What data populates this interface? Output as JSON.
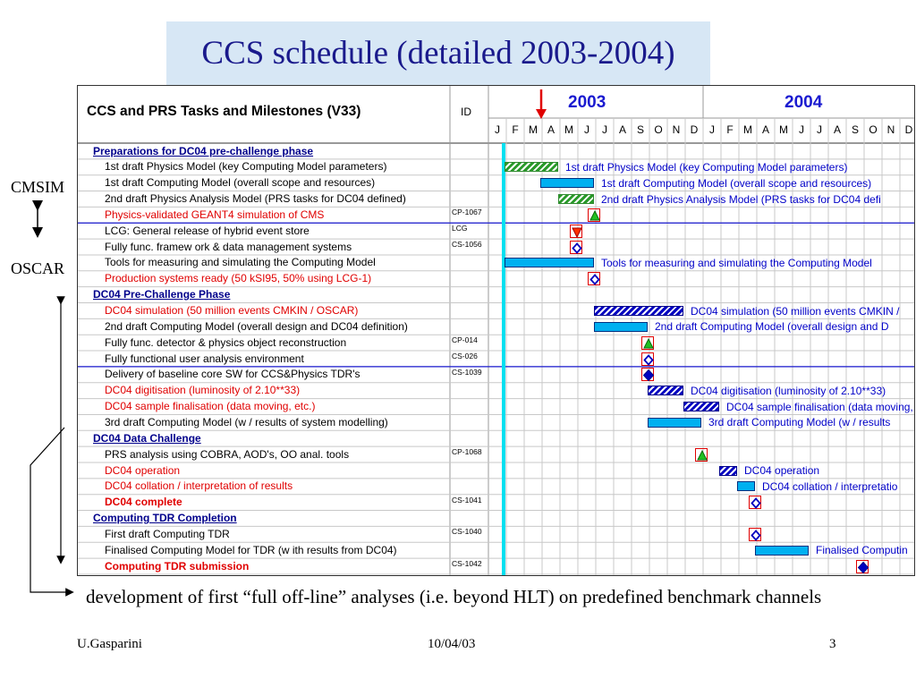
{
  "title": "CCS schedule (detailed 2003-2004)",
  "header": {
    "tasks_label": "CCS and PRS Tasks and Milestones (V33)",
    "id_label": "ID",
    "years": [
      "2003",
      "2004"
    ],
    "months": [
      "J",
      "F",
      "M",
      "A",
      "M",
      "J",
      "J",
      "A",
      "S",
      "O",
      "N",
      "D",
      "J",
      "F",
      "M",
      "A",
      "M",
      "J",
      "J",
      "A",
      "S",
      "O",
      "N",
      "D"
    ]
  },
  "rows": [
    {
      "label": "Preparations for DC04 pre-challenge phase",
      "style": "section",
      "id": ""
    },
    {
      "label": "1st draft Physics  Model (key Computing Model parameters)",
      "style": "normal",
      "id": "",
      "bar": {
        "kind": "hatch-green",
        "start_month": 1,
        "end_month": 4
      },
      "bar_label": "1st draft Physics  Model (key Computing Model parameters)"
    },
    {
      "label": "1st draft Computing Model (overall scope and resources)",
      "style": "normal",
      "id": "",
      "bar": {
        "kind": "solid",
        "start_month": 3,
        "end_month": 6
      },
      "bar_label": "1st draft Computing Model (overall scope and resources)"
    },
    {
      "label": "2nd draft Physics Analysis Model (PRS tasks for DC04 defined)",
      "style": "normal",
      "id": "",
      "bar": {
        "kind": "hatch-green",
        "start_month": 4,
        "end_month": 6
      },
      "bar_label": "2nd draft Physics Analysis Model (PRS tasks for DC04 defi"
    },
    {
      "label": "Physics-validated GEANT4 simulation of CMS",
      "style": "red",
      "id": "CP-1067",
      "milestone": {
        "shape": "triangle-up",
        "month": 6
      }
    },
    {
      "label": "LCG: General release of hybrid event store",
      "style": "normal",
      "id": "LCG",
      "milestone": {
        "shape": "triangle-down",
        "month": 5
      }
    },
    {
      "label": "Fully func. framew ork & data management systems",
      "style": "normal",
      "id": "CS-1056",
      "milestone": {
        "shape": "diamond-open",
        "month": 5
      }
    },
    {
      "label": "Tools for measuring and simulating the Computing Model",
      "style": "normal",
      "id": "",
      "bar": {
        "kind": "solid",
        "start_month": 1,
        "end_month": 6
      },
      "bar_label": "Tools for measuring and simulating the Computing Model"
    },
    {
      "label": "Production systems ready (50 kSI95, 50% using LCG-1)",
      "style": "red",
      "id": "",
      "milestone": {
        "shape": "diamond-open",
        "month": 6
      }
    },
    {
      "label": "DC04 Pre-Challenge Phase",
      "style": "section",
      "id": ""
    },
    {
      "label": "DC04 simulation (50 million events CMKIN / OSCAR)",
      "style": "red",
      "id": "",
      "bar": {
        "kind": "hatch-blue",
        "start_month": 6,
        "end_month": 11
      },
      "bar_label": "DC04 simulation (50 million events CMKIN /"
    },
    {
      "label": "2nd draft Computing Model (overall design and DC04 definition)",
      "style": "normal",
      "id": "",
      "bar": {
        "kind": "solid",
        "start_month": 6,
        "end_month": 9
      },
      "bar_label": "2nd draft Computing Model (overall design and D"
    },
    {
      "label": "Fully func. detector & physics object reconstruction",
      "style": "normal",
      "id": "CP-014",
      "milestone": {
        "shape": "triangle-up",
        "month": 9
      }
    },
    {
      "label": "Fully functional user analysis environment",
      "style": "normal",
      "id": "CS-026",
      "milestone": {
        "shape": "diamond-open",
        "month": 9
      }
    },
    {
      "label": "Delivery of baseline core SW for CCS&Physics TDR's",
      "style": "normal",
      "id": "CS-1039",
      "milestone": {
        "shape": "diamond-filled",
        "month": 9
      }
    },
    {
      "label": "DC04 digitisation (luminosity of 2.10**33)",
      "style": "red",
      "id": "",
      "bar": {
        "kind": "hatch-blue",
        "start_month": 9,
        "end_month": 11
      },
      "bar_label": "DC04 digitisation (luminosity of 2.10**33)"
    },
    {
      "label": "DC04 sample finalisation (data moving, etc.)",
      "style": "red",
      "id": "",
      "bar": {
        "kind": "hatch-blue",
        "start_month": 11,
        "end_month": 13
      },
      "bar_label": "DC04 sample finalisation (data moving,"
    },
    {
      "label": "3rd draft Computing Model (w / results of system modelling)",
      "style": "normal",
      "id": "",
      "bar": {
        "kind": "solid",
        "start_month": 9,
        "end_month": 12
      },
      "bar_label": "3rd draft Computing Model (w / results"
    },
    {
      "label": "DC04 Data Challenge",
      "style": "section",
      "id": ""
    },
    {
      "label": "PRS analysis using COBRA, AOD's, OO anal. tools",
      "style": "normal",
      "id": "CP-1068",
      "milestone": {
        "shape": "triangle-up",
        "month": 12
      }
    },
    {
      "label": "DC04 operation",
      "style": "red",
      "id": "",
      "bar": {
        "kind": "hatch-blue",
        "start_month": 13,
        "end_month": 14
      },
      "bar_label": "DC04 operation"
    },
    {
      "label": "DC04 collation / interpretation of results",
      "style": "red",
      "id": "",
      "bar": {
        "kind": "solid",
        "start_month": 14,
        "end_month": 15
      },
      "bar_label": "DC04 collation / interpretatio"
    },
    {
      "label": "DC04 complete",
      "style": "redbold",
      "id": "CS-1041",
      "milestone": {
        "shape": "diamond-open",
        "month": 15
      }
    },
    {
      "label": "Computing TDR Completion",
      "style": "section",
      "id": ""
    },
    {
      "label": "First draft Computing TDR",
      "style": "normal",
      "id": "CS-1040",
      "milestone": {
        "shape": "diamond-open",
        "month": 15
      }
    },
    {
      "label": "Finalised Computing Model for TDR (w ith results from DC04)",
      "style": "normal",
      "id": "",
      "bar": {
        "kind": "solid",
        "start_month": 15,
        "end_month": 18
      },
      "bar_label": "Finalised Computin"
    },
    {
      "label": "Computing TDR submission",
      "style": "redbold",
      "id": "CS-1042",
      "milestone": {
        "shape": "diamond-filled",
        "month": 21
      }
    }
  ],
  "side_labels": {
    "cmsim": "CMSIM",
    "oscar": "OSCAR"
  },
  "caption": "development of first “full off-line” analyses (i.e. beyond HLT) on predefined benchmark channels",
  "footer": {
    "author": "U.Gasparini",
    "date": "10/04/03",
    "page": "3"
  },
  "colors": {
    "title_bg": "#d7e7f5",
    "title_text": "#1a1a8c",
    "bar_fill": "#00b0f0",
    "bar_label": "#0000c8",
    "section": "#00008b",
    "red": "#e00000",
    "today_line": "#00e0f0"
  }
}
